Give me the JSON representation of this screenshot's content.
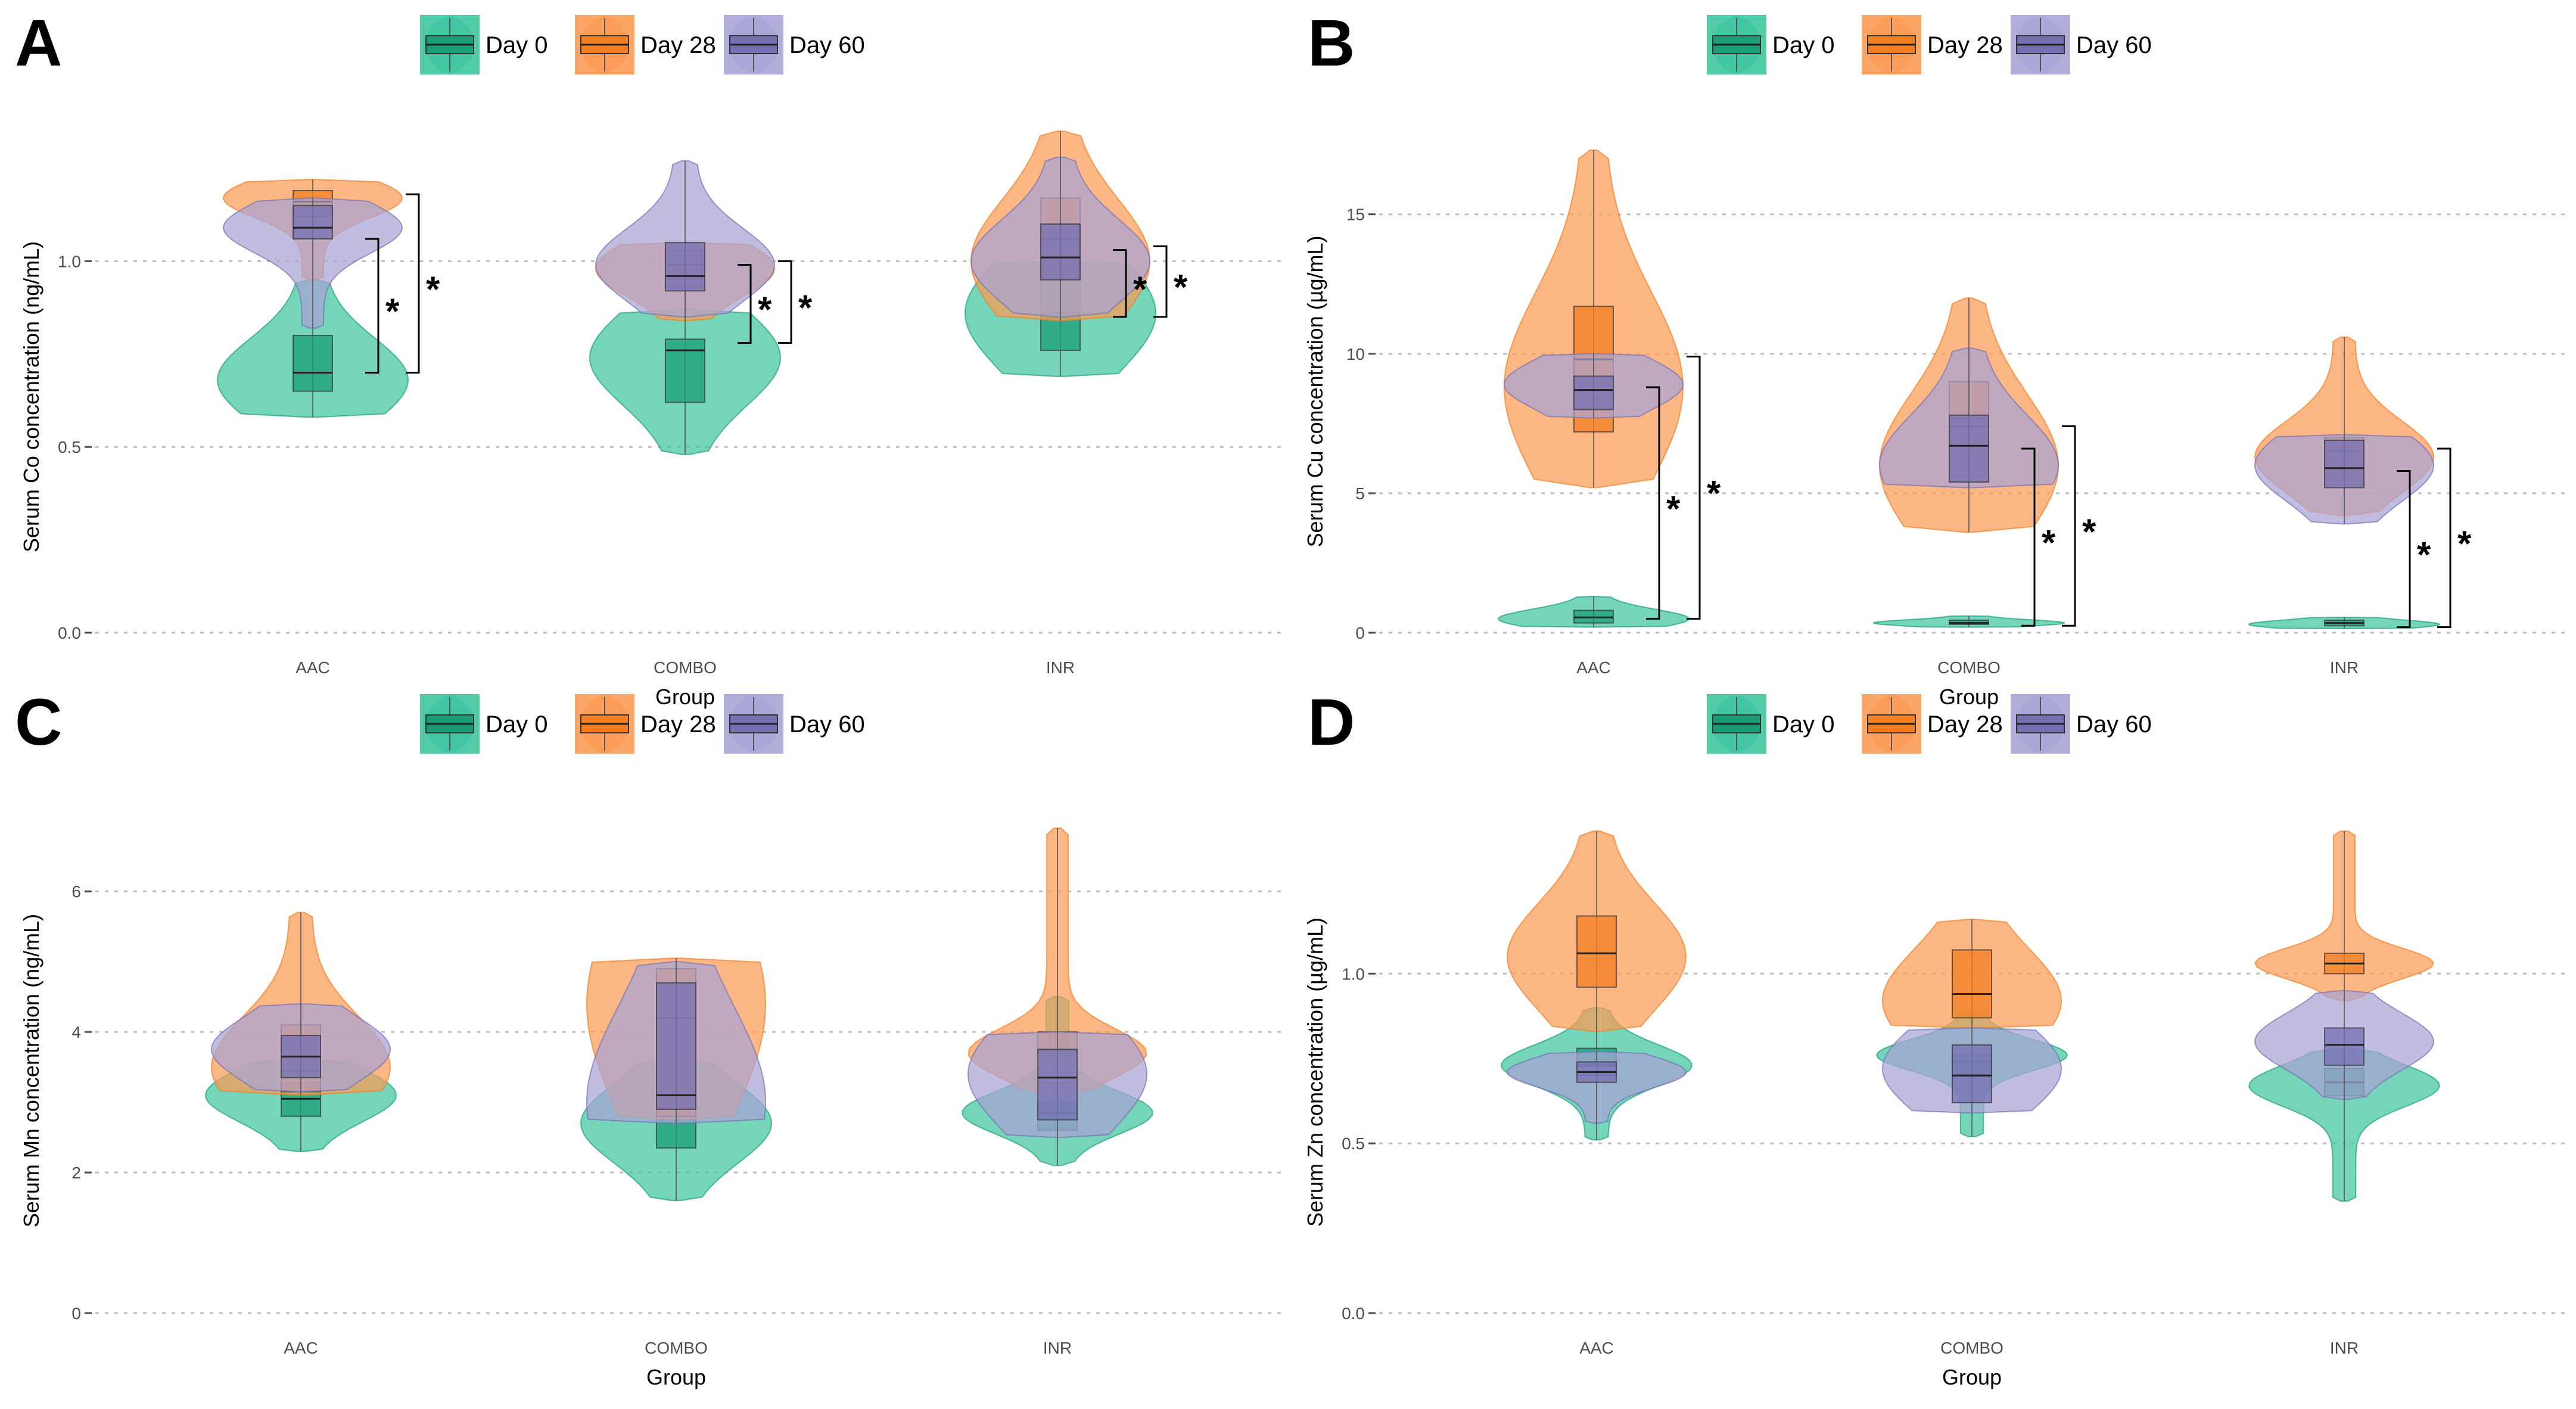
{
  "colors": {
    "Day 0": "#1b9e77",
    "Day 28": "#f47e22",
    "Day 60": "#7570b3",
    "Day 0_fill": "#3fc5a0",
    "Day 28_fill": "#fb9b55",
    "Day 60_fill": "#a9a4d6"
  },
  "chart_data": [
    {
      "panel": "A",
      "type": "violin",
      "xlabel": "Group",
      "ylabel": "Serum Co concentration (ng/mL)",
      "ylim": [
        0.0,
        1.27
      ],
      "yticks": [
        0.0,
        0.5,
        1.0
      ],
      "ytick_labels": [
        "0.0",
        "0.5",
        "1.0"
      ],
      "categories": [
        "AAC",
        "COMBO",
        "INR"
      ],
      "legend": [
        "Day 0",
        "Day 28",
        "Day 60"
      ],
      "groups": [
        {
          "name": "AAC",
          "series": [
            {
              "day": "Day 0",
              "min": 0.58,
              "q1": 0.65,
              "median": 0.7,
              "q3": 0.8,
              "max": 0.95,
              "mode": 0.68
            },
            {
              "day": "Day 28",
              "min": 0.95,
              "q1": 1.12,
              "median": 1.16,
              "q3": 1.19,
              "max": 1.22,
              "mode": 1.17
            },
            {
              "day": "Day 60",
              "min": 0.82,
              "q1": 1.06,
              "median": 1.09,
              "q3": 1.15,
              "max": 1.17,
              "mode": 1.09
            }
          ]
        },
        {
          "name": "COMBO",
          "series": [
            {
              "day": "Day 0",
              "min": 0.48,
              "q1": 0.62,
              "median": 0.76,
              "q3": 0.79,
              "max": 0.87,
              "mode": 0.74
            },
            {
              "day": "Day 28",
              "min": 0.84,
              "q1": 0.93,
              "median": 0.99,
              "q3": 1.03,
              "max": 1.05,
              "mode": 0.98
            },
            {
              "day": "Day 60",
              "min": 0.85,
              "q1": 0.92,
              "median": 0.96,
              "q3": 1.05,
              "max": 1.27,
              "mode": 0.99
            }
          ]
        },
        {
          "name": "INR",
          "series": [
            {
              "day": "Day 0",
              "min": 0.69,
              "q1": 0.76,
              "median": 0.86,
              "q3": 0.96,
              "max": 1.0,
              "mode": 0.86
            },
            {
              "day": "Day 28",
              "min": 0.84,
              "q1": 0.95,
              "median": 1.06,
              "q3": 1.17,
              "max": 1.35,
              "mode": 1.0
            },
            {
              "day": "Day 60",
              "min": 0.85,
              "q1": 0.95,
              "median": 1.01,
              "q3": 1.1,
              "max": 1.28,
              "mode": 1.0
            }
          ]
        }
      ],
      "significance": [
        {
          "group": "AAC",
          "y_from": 0.7,
          "y_to": 1.06,
          "label": "*"
        },
        {
          "group": "AAC",
          "y_from": 0.7,
          "y_to": 1.18,
          "label": "*"
        },
        {
          "group": "COMBO",
          "y_from": 0.78,
          "y_to": 0.99,
          "label": "*"
        },
        {
          "group": "COMBO",
          "y_from": 0.78,
          "y_to": 1.0,
          "label": "*"
        },
        {
          "group": "INR",
          "y_from": 0.85,
          "y_to": 1.03,
          "label": "*"
        },
        {
          "group": "INR",
          "y_from": 0.85,
          "y_to": 1.04,
          "label": "*"
        }
      ]
    },
    {
      "panel": "B",
      "type": "violin",
      "xlabel": "Group",
      "ylabel": "Serum Cu concentration (µg/mL)",
      "ylim": [
        0,
        17.3
      ],
      "yticks": [
        0,
        5,
        10,
        15
      ],
      "ytick_labels": [
        "0",
        "5",
        "10",
        "15"
      ],
      "categories": [
        "AAC",
        "COMBO",
        "INR"
      ],
      "legend": [
        "Day 0",
        "Day 28",
        "Day 60"
      ],
      "groups": [
        {
          "name": "AAC",
          "series": [
            {
              "day": "Day 0",
              "min": 0.2,
              "q1": 0.35,
              "median": 0.55,
              "q3": 0.8,
              "max": 1.3,
              "mode": 0.5
            },
            {
              "day": "Day 28",
              "min": 5.2,
              "q1": 7.2,
              "median": 9.8,
              "q3": 11.7,
              "max": 17.3,
              "mode": 8.8
            },
            {
              "day": "Day 60",
              "min": 7.7,
              "q1": 8.0,
              "median": 8.7,
              "q3": 9.2,
              "max": 10.0,
              "mode": 8.9
            }
          ]
        },
        {
          "name": "COMBO",
          "series": [
            {
              "day": "Day 0",
              "min": 0.2,
              "q1": 0.3,
              "median": 0.35,
              "q3": 0.45,
              "max": 0.6,
              "mode": 0.35
            },
            {
              "day": "Day 28",
              "min": 3.6,
              "q1": 5.6,
              "median": 7.4,
              "q3": 9.0,
              "max": 12.0,
              "mode": 6.0
            },
            {
              "day": "Day 60",
              "min": 5.2,
              "q1": 5.4,
              "median": 6.7,
              "q3": 7.8,
              "max": 10.2,
              "mode": 6.0
            }
          ]
        },
        {
          "name": "INR",
          "series": [
            {
              "day": "Day 0",
              "min": 0.15,
              "q1": 0.25,
              "median": 0.35,
              "q3": 0.45,
              "max": 0.55,
              "mode": 0.3
            },
            {
              "day": "Day 28",
              "min": 4.2,
              "q1": 5.3,
              "median": 6.5,
              "q3": 7.0,
              "max": 10.6,
              "mode": 6.3
            },
            {
              "day": "Day 60",
              "min": 3.9,
              "q1": 5.2,
              "median": 5.9,
              "q3": 6.9,
              "max": 7.1,
              "mode": 6.0
            }
          ]
        }
      ],
      "significance": [
        {
          "group": "AAC",
          "y_from": 0.5,
          "y_to": 8.8,
          "label": "*"
        },
        {
          "group": "AAC",
          "y_from": 0.5,
          "y_to": 9.9,
          "label": "*"
        },
        {
          "group": "COMBO",
          "y_from": 0.25,
          "y_to": 6.6,
          "label": "*"
        },
        {
          "group": "COMBO",
          "y_from": 0.25,
          "y_to": 7.4,
          "label": "*"
        },
        {
          "group": "INR",
          "y_from": 0.2,
          "y_to": 5.8,
          "label": "*"
        },
        {
          "group": "INR",
          "y_from": 0.2,
          "y_to": 6.6,
          "label": "*"
        }
      ]
    },
    {
      "panel": "C",
      "type": "violin",
      "xlabel": "Group",
      "ylabel": "Serum Mn concentration (ng/mL)",
      "ylim": [
        0,
        6.9
      ],
      "yticks": [
        0,
        2,
        4,
        6
      ],
      "ytick_labels": [
        "0",
        "2",
        "4",
        "6"
      ],
      "categories": [
        "AAC",
        "COMBO",
        "INR"
      ],
      "legend": [
        "Day 0",
        "Day 28",
        "Day 60"
      ],
      "groups": [
        {
          "name": "AAC",
          "series": [
            {
              "day": "Day 0",
              "min": 2.3,
              "q1": 2.8,
              "median": 3.05,
              "q3": 3.3,
              "max": 3.6,
              "mode": 3.1
            },
            {
              "day": "Day 28",
              "min": 3.1,
              "q1": 3.15,
              "median": 3.45,
              "q3": 4.1,
              "max": 5.7,
              "mode": 3.5
            },
            {
              "day": "Day 60",
              "min": 3.15,
              "q1": 3.35,
              "median": 3.65,
              "q3": 3.95,
              "max": 4.4,
              "mode": 3.75
            }
          ]
        },
        {
          "name": "COMBO",
          "series": [
            {
              "day": "Day 0",
              "min": 1.6,
              "q1": 2.35,
              "median": 3.0,
              "q3": 3.1,
              "max": 3.6,
              "mode": 2.7
            },
            {
              "day": "Day 28",
              "min": 2.75,
              "q1": 2.8,
              "median": 4.2,
              "q3": 4.9,
              "max": 5.05,
              "mode": 4.4
            },
            {
              "day": "Day 60",
              "min": 2.7,
              "q1": 2.9,
              "median": 3.1,
              "q3": 4.7,
              "max": 5.0,
              "mode": 3.0
            }
          ]
        },
        {
          "name": "INR",
          "series": [
            {
              "day": "Day 0",
              "min": 2.1,
              "q1": 2.6,
              "median": 2.85,
              "q3": 3.0,
              "max": 4.5,
              "mode": 2.85
            },
            {
              "day": "Day 28",
              "min": 3.1,
              "q1": 3.7,
              "median": 3.75,
              "q3": 4.0,
              "max": 6.9,
              "mode": 3.7
            },
            {
              "day": "Day 60",
              "min": 2.5,
              "q1": 2.75,
              "median": 3.35,
              "q3": 3.75,
              "max": 4.0,
              "mode": 3.4
            }
          ]
        }
      ],
      "significance": []
    },
    {
      "panel": "D",
      "type": "violin",
      "xlabel": "Group",
      "ylabel": "Serum Zn concentration (µg/mL)",
      "ylim": [
        0.0,
        1.42
      ],
      "yticks": [
        0.0,
        0.5,
        1.0
      ],
      "ytick_labels": [
        "0.0",
        "0.5",
        "1.0"
      ],
      "categories": [
        "AAC",
        "COMBO",
        "INR"
      ],
      "legend": [
        "Day 0",
        "Day 28",
        "Day 60"
      ],
      "groups": [
        {
          "name": "AAC",
          "series": [
            {
              "day": "Day 0",
              "min": 0.51,
              "q1": 0.7,
              "median": 0.73,
              "q3": 0.78,
              "max": 0.9,
              "mode": 0.73
            },
            {
              "day": "Day 28",
              "min": 0.83,
              "q1": 0.96,
              "median": 1.06,
              "q3": 1.17,
              "max": 1.42,
              "mode": 1.05
            },
            {
              "day": "Day 60",
              "min": 0.56,
              "q1": 0.68,
              "median": 0.71,
              "q3": 0.74,
              "max": 0.77,
              "mode": 0.71
            }
          ]
        },
        {
          "name": "COMBO",
          "series": [
            {
              "day": "Day 0",
              "min": 0.52,
              "q1": 0.7,
              "median": 0.74,
              "q3": 0.76,
              "max": 0.89,
              "mode": 0.76
            },
            {
              "day": "Day 28",
              "min": 0.84,
              "q1": 0.87,
              "median": 0.94,
              "q3": 1.07,
              "max": 1.16,
              "mode": 0.92
            },
            {
              "day": "Day 60",
              "min": 0.59,
              "q1": 0.62,
              "median": 0.7,
              "q3": 0.79,
              "max": 0.84,
              "mode": 0.72
            }
          ]
        },
        {
          "name": "INR",
          "series": [
            {
              "day": "Day 0",
              "min": 0.33,
              "q1": 0.64,
              "median": 0.68,
              "q3": 0.72,
              "max": 0.78,
              "mode": 0.67
            },
            {
              "day": "Day 28",
              "min": 0.92,
              "q1": 1.0,
              "median": 1.03,
              "q3": 1.06,
              "max": 1.42,
              "mode": 1.03
            },
            {
              "day": "Day 60",
              "min": 0.63,
              "q1": 0.73,
              "median": 0.79,
              "q3": 0.84,
              "max": 0.95,
              "mode": 0.8
            }
          ]
        }
      ],
      "significance": []
    }
  ]
}
